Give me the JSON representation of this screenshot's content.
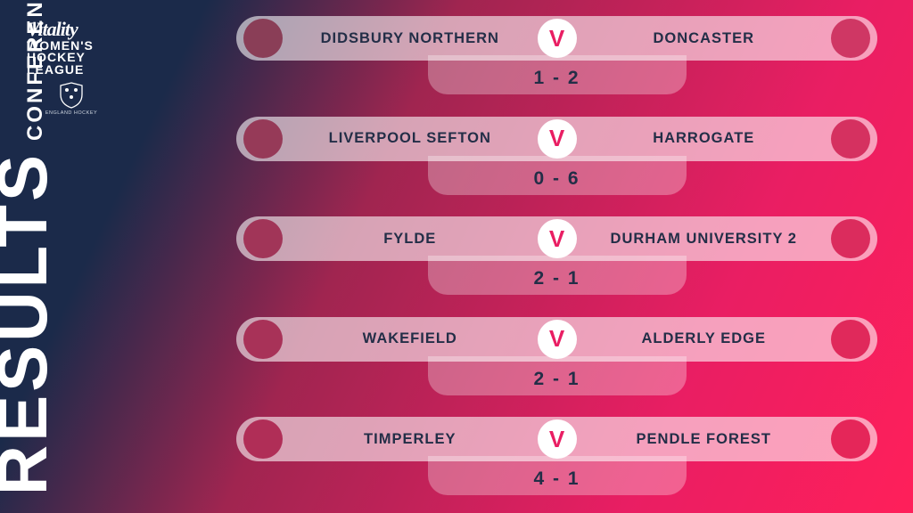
{
  "branding": {
    "vitality": "Vitality",
    "line1": "WOMEN'S",
    "line2": "HOCKEY",
    "line3": "LEAGUE",
    "crest_label": "ENGLAND HOCKEY"
  },
  "title": {
    "main": "RESULTS",
    "sub": "CONFERENCE NORTH"
  },
  "styling": {
    "background_gradient": [
      "#1b2a4a",
      "#a02550",
      "#e91e63",
      "#ff1f5a"
    ],
    "bar_bg": "rgba(255,255,255,0.58)",
    "score_tab_bg": "rgba(255,255,255,0.30)",
    "text_color": "#232e47",
    "v_color": "#e91e63",
    "title_color": "#ffffff"
  },
  "v_label": "V",
  "fixtures": [
    {
      "home_team": "DIDSBURY NORTHERN",
      "away_team": "DONCASTER",
      "home_score": 1,
      "away_score": 2,
      "score_display": "1 - 2",
      "home_dot_color": "#8a3e57",
      "away_dot_color": "#cf3764"
    },
    {
      "home_team": "LIVERPOOL SEFTON",
      "away_team": "HARROGATE",
      "home_score": 0,
      "away_score": 6,
      "score_display": "0 - 6",
      "home_dot_color": "#963a58",
      "away_dot_color": "#d53160"
    },
    {
      "home_team": "FYLDE",
      "away_team": "DURHAM UNIVERSITY 2",
      "home_score": 2,
      "away_score": 1,
      "score_display": "2 - 1",
      "home_dot_color": "#a13558",
      "away_dot_color": "#db2c5d"
    },
    {
      "home_team": "WAKEFIELD",
      "away_team": "ALDERLY EDGE",
      "home_score": 2,
      "away_score": 1,
      "score_display": "2 - 1",
      "home_dot_color": "#a83258",
      "away_dot_color": "#e0295b"
    },
    {
      "home_team": "TIMPERLEY",
      "away_team": "PENDLE FOREST",
      "home_score": 4,
      "away_score": 1,
      "score_display": "4 - 1",
      "home_dot_color": "#b02e57",
      "away_dot_color": "#e52659"
    }
  ]
}
